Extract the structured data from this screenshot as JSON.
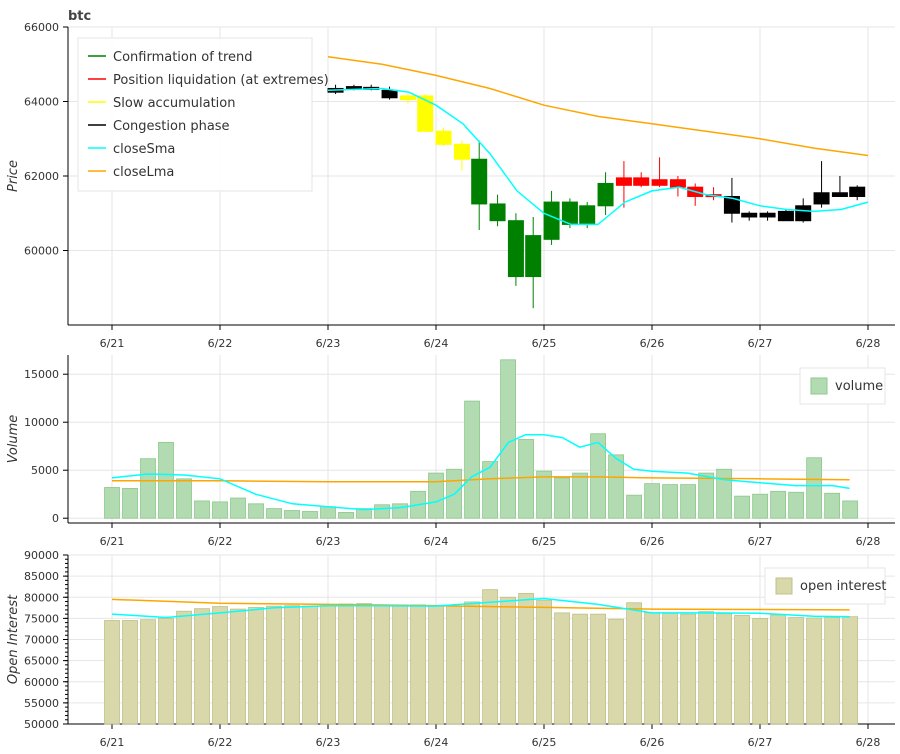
{
  "title": "btc",
  "x_ticks": [
    "6/21",
    "6/22",
    "6/23",
    "6/24",
    "6/25",
    "6/26",
    "6/27",
    "6/28"
  ],
  "colors": {
    "confirmation": "#008000",
    "liquidation": "#ff0000",
    "accumulation": "#ffff00",
    "congestion": "#000000",
    "sma": "#00ffff",
    "lma": "#ffa500",
    "volume_fill": "#b2dbb2",
    "volume_stroke": "#8cc88c",
    "oi_fill": "#d8d8aa",
    "oi_stroke": "#c0c08a"
  },
  "legend_top": {
    "items": [
      {
        "label": "Confirmation of trend",
        "color": "#008000"
      },
      {
        "label": "Position liquidation (at extremes)",
        "color": "#ff0000"
      },
      {
        "label": "Slow accumulation",
        "color": "#ffff00"
      },
      {
        "label": "Congestion phase",
        "color": "#000000"
      },
      {
        "label": "closeSma",
        "color": "#00ffff"
      },
      {
        "label": "closeLma",
        "color": "#ffa500"
      }
    ]
  },
  "legend_volume": "volume",
  "legend_oi": "open interest",
  "chart_data": [
    {
      "type": "candlestick",
      "title": "btc",
      "ylabel": "Price",
      "ylim": [
        58000,
        66000
      ],
      "yticks": [
        60000,
        62000,
        64000,
        66000
      ],
      "candles_visible": [
        {
          "t": 3.07,
          "o": 64350,
          "c": 64250,
          "h": 64450,
          "l": 64200,
          "phase": "congestion"
        },
        {
          "t": 3.24,
          "o": 64400,
          "c": 64360,
          "h": 64450,
          "l": 64300,
          "phase": "congestion"
        },
        {
          "t": 3.4,
          "o": 64380,
          "c": 64330,
          "h": 64450,
          "l": 64300,
          "phase": "congestion"
        },
        {
          "t": 3.57,
          "o": 64300,
          "c": 64100,
          "h": 64400,
          "l": 64050,
          "phase": "congestion"
        },
        {
          "t": 3.74,
          "o": 64150,
          "c": 64050,
          "h": 64200,
          "l": 63950,
          "phase": "accumulation"
        },
        {
          "t": 3.9,
          "o": 64150,
          "c": 63200,
          "h": 64200,
          "l": 63200,
          "phase": "accumulation"
        },
        {
          "t": 4.07,
          "o": 63200,
          "c": 62850,
          "h": 63300,
          "l": 62800,
          "phase": "accumulation"
        },
        {
          "t": 4.24,
          "o": 62850,
          "c": 62450,
          "h": 62950,
          "l": 62150,
          "phase": "accumulation"
        },
        {
          "t": 4.4,
          "o": 62450,
          "c": 61250,
          "h": 62950,
          "l": 60550,
          "phase": "confirmation"
        },
        {
          "t": 4.57,
          "o": 61250,
          "c": 60800,
          "h": 61500,
          "l": 60650,
          "phase": "confirmation"
        },
        {
          "t": 4.74,
          "o": 60800,
          "c": 59300,
          "h": 61000,
          "l": 59050,
          "phase": "confirmation"
        },
        {
          "t": 4.9,
          "o": 60400,
          "c": 59300,
          "h": 60900,
          "l": 58450,
          "phase": "confirmation"
        },
        {
          "t": 5.07,
          "o": 60300,
          "c": 61300,
          "h": 61600,
          "l": 60150,
          "phase": "confirmation"
        },
        {
          "t": 5.24,
          "o": 61300,
          "c": 60700,
          "h": 61400,
          "l": 60600,
          "phase": "confirmation"
        },
        {
          "t": 5.4,
          "o": 60700,
          "c": 61200,
          "h": 61300,
          "l": 60600,
          "phase": "confirmation"
        },
        {
          "t": 5.57,
          "o": 61200,
          "c": 61800,
          "h": 62100,
          "l": 60950,
          "phase": "confirmation"
        },
        {
          "t": 5.74,
          "o": 61950,
          "c": 61750,
          "h": 62400,
          "l": 61150,
          "phase": "liquidation"
        },
        {
          "t": 5.9,
          "o": 61950,
          "c": 61750,
          "h": 62100,
          "l": 61700,
          "phase": "liquidation"
        },
        {
          "t": 6.07,
          "o": 61900,
          "c": 61750,
          "h": 62500,
          "l": 61700,
          "phase": "liquidation"
        },
        {
          "t": 6.24,
          "o": 61900,
          "c": 61700,
          "h": 62000,
          "l": 61450,
          "phase": "liquidation"
        },
        {
          "t": 6.4,
          "o": 61700,
          "c": 61450,
          "h": 61800,
          "l": 61200,
          "phase": "liquidation"
        },
        {
          "t": 6.57,
          "o": 61500,
          "c": 61450,
          "h": 61700,
          "l": 61350,
          "phase": "liquidation"
        },
        {
          "t": 6.74,
          "o": 61450,
          "c": 61000,
          "h": 61950,
          "l": 60750,
          "phase": "congestion"
        },
        {
          "t": 6.9,
          "o": 61000,
          "c": 60900,
          "h": 61050,
          "l": 60800,
          "phase": "congestion"
        },
        {
          "t": 7.07,
          "o": 61000,
          "c": 60900,
          "h": 61050,
          "l": 60800,
          "phase": "congestion"
        },
        {
          "t": 7.24,
          "o": 61050,
          "c": 60800,
          "h": 61100,
          "l": 60800,
          "phase": "congestion"
        },
        {
          "t": 7.4,
          "o": 60800,
          "c": 61200,
          "h": 61400,
          "l": 60750,
          "phase": "congestion"
        },
        {
          "t": 7.57,
          "o": 61250,
          "c": 61550,
          "h": 62400,
          "l": 61150,
          "phase": "congestion"
        },
        {
          "t": 7.74,
          "o": 61450,
          "c": 61550,
          "h": 62000,
          "l": 61450,
          "phase": "congestion"
        },
        {
          "t": 7.9,
          "o": 61450,
          "c": 61700,
          "h": 61750,
          "l": 61350,
          "phase": "congestion"
        }
      ],
      "closeSma": {
        "t": [
          3.0,
          3.5,
          3.75,
          4.0,
          4.25,
          4.5,
          4.75,
          5.0,
          5.25,
          5.5,
          5.75,
          6.0,
          6.25,
          6.5,
          6.75,
          7.0,
          7.25,
          7.5,
          7.75,
          8.0
        ],
        "v": [
          64300,
          64350,
          64250,
          63900,
          63400,
          62600,
          61600,
          61000,
          60700,
          60700,
          61300,
          61600,
          61700,
          61500,
          61400,
          61200,
          61100,
          61050,
          61100,
          61300
        ]
      },
      "closeLma": {
        "t": [
          3.0,
          3.5,
          4.0,
          4.5,
          5.0,
          5.5,
          6.0,
          6.5,
          7.0,
          7.5,
          8.0
        ],
        "v": [
          65200,
          65000,
          64700,
          64350,
          63900,
          63600,
          63400,
          63200,
          63000,
          62750,
          62550
        ]
      }
    },
    {
      "type": "bar",
      "ylabel": "Volume",
      "ylim": [
        -500,
        17000
      ],
      "yticks": [
        0,
        5000,
        10000,
        15000
      ],
      "x_start": 1.0,
      "x_step": 0.1667,
      "values": [
        3200,
        3100,
        6200,
        7900,
        4100,
        1800,
        1700,
        2100,
        1500,
        1000,
        800,
        700,
        1200,
        600,
        1000,
        1400,
        1500,
        2800,
        4700,
        5100,
        12200,
        5900,
        16500,
        8200,
        4900,
        4200,
        4700,
        8800,
        6600,
        2400,
        3600,
        3500,
        3500,
        4700,
        5100,
        2300,
        2500,
        2800,
        2700,
        6300,
        2600,
        1800
      ],
      "sma": {
        "t": [
          1.0,
          1.33,
          1.67,
          2.0,
          2.33,
          2.67,
          3.0,
          3.33,
          3.67,
          4.0,
          4.17,
          4.33,
          4.5,
          4.67,
          4.83,
          5.0,
          5.17,
          5.33,
          5.5,
          5.67,
          5.83,
          6.0,
          6.33,
          6.67,
          7.0,
          7.33,
          7.67,
          7.83
        ],
        "v": [
          4200,
          4600,
          4500,
          4100,
          2500,
          1500,
          1200,
          900,
          1100,
          1700,
          2500,
          4300,
          5300,
          7900,
          8700,
          8700,
          8400,
          7400,
          7900,
          6200,
          5100,
          4900,
          4700,
          4000,
          3700,
          3400,
          3400,
          3100
        ]
      },
      "lma": {
        "t": [
          1.0,
          2.0,
          3.0,
          4.0,
          4.5,
          5.0,
          5.5,
          6.0,
          7.0,
          7.83
        ],
        "v": [
          3900,
          3900,
          3800,
          3800,
          4100,
          4300,
          4300,
          4200,
          4100,
          4000
        ]
      }
    },
    {
      "type": "bar",
      "ylabel": "Open Interest",
      "ylim": [
        50000,
        90000
      ],
      "yticks": [
        50000,
        55000,
        60000,
        65000,
        70000,
        75000,
        80000,
        85000,
        90000
      ],
      "x_start": 1.0,
      "x_step": 0.1667,
      "values": [
        74500,
        74500,
        74700,
        75000,
        76700,
        77300,
        77800,
        77200,
        77600,
        77900,
        78000,
        77900,
        78000,
        78400,
        78500,
        78200,
        78200,
        78200,
        78100,
        77900,
        78900,
        81800,
        80000,
        80900,
        79300,
        76300,
        76000,
        76000,
        74800,
        78700,
        76300,
        76200,
        76000,
        76600,
        76100,
        75700,
        75000,
        75800,
        75200,
        75100,
        75200,
        75400
      ],
      "sma": {
        "t": [
          1.0,
          1.5,
          2.0,
          2.5,
          3.0,
          3.5,
          4.0,
          4.5,
          5.0,
          5.5,
          6.0,
          6.5,
          7.0,
          7.5,
          7.83
        ],
        "v": [
          76000,
          75200,
          76300,
          77500,
          78000,
          78000,
          77900,
          78800,
          79700,
          78300,
          76300,
          76300,
          76200,
          75500,
          75400
        ]
      },
      "lma": {
        "t": [
          1.0,
          2.0,
          3.0,
          4.0,
          5.0,
          6.0,
          7.0,
          7.83
        ],
        "v": [
          79500,
          78600,
          78300,
          78000,
          77600,
          77200,
          77100,
          77000
        ]
      }
    }
  ]
}
